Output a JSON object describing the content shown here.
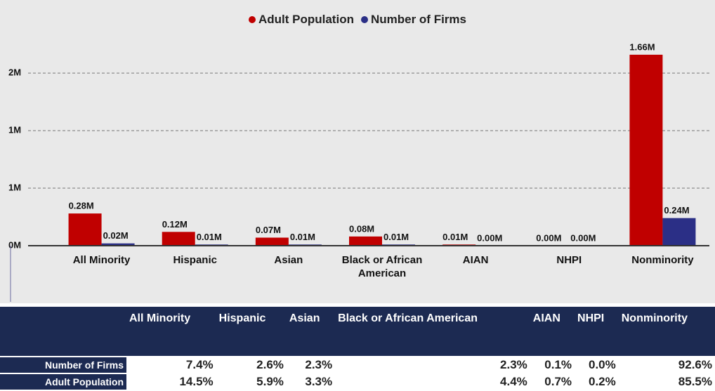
{
  "chart_data": {
    "type": "bar",
    "categories": [
      "All Minority",
      "Hispanic",
      "Asian",
      "Black or African American",
      "AIAN",
      "NHPI",
      "Nonminority"
    ],
    "series": [
      {
        "name": "Adult Population",
        "color": "#c00000",
        "values": [
          0.28,
          0.12,
          0.07,
          0.08,
          0.01,
          0.0,
          1.66
        ],
        "value_labels": [
          "0.28M",
          "0.12M",
          "0.07M",
          "0.08M",
          "0.01M",
          "0.00M",
          "1.66M"
        ]
      },
      {
        "name": "Number of Firms",
        "color": "#2b2f86",
        "values": [
          0.02,
          0.01,
          0.01,
          0.01,
          0.0,
          0.0,
          0.24
        ],
        "value_labels": [
          "0.02M",
          "0.01M",
          "0.01M",
          "0.01M",
          "0.00M",
          "0.00M",
          "0.24M"
        ]
      }
    ],
    "ylim": [
      0,
      1.8
    ],
    "yticks": [
      {
        "value": 0,
        "label": "0M"
      },
      {
        "value": 0.5,
        "label": "1M"
      },
      {
        "value": 1.0,
        "label": "1M"
      },
      {
        "value": 1.5,
        "label": "2M"
      }
    ],
    "grid": true,
    "legend": "top"
  },
  "table": {
    "header": [
      "All Minority",
      "Hispanic",
      "Asian",
      "Black or African American",
      "AIAN",
      "NHPI",
      "Nonminority"
    ],
    "rows": [
      [
        "Number of Firms",
        "7.4%",
        "2.6%",
        "2.3%",
        "2.3%",
        "0.1%",
        "0.0%",
        "92.6%"
      ],
      [
        "Adult Population",
        "14.5%",
        "5.9%",
        "3.3%",
        "4.4%",
        "0.7%",
        "0.2%",
        "85.5%"
      ]
    ]
  }
}
